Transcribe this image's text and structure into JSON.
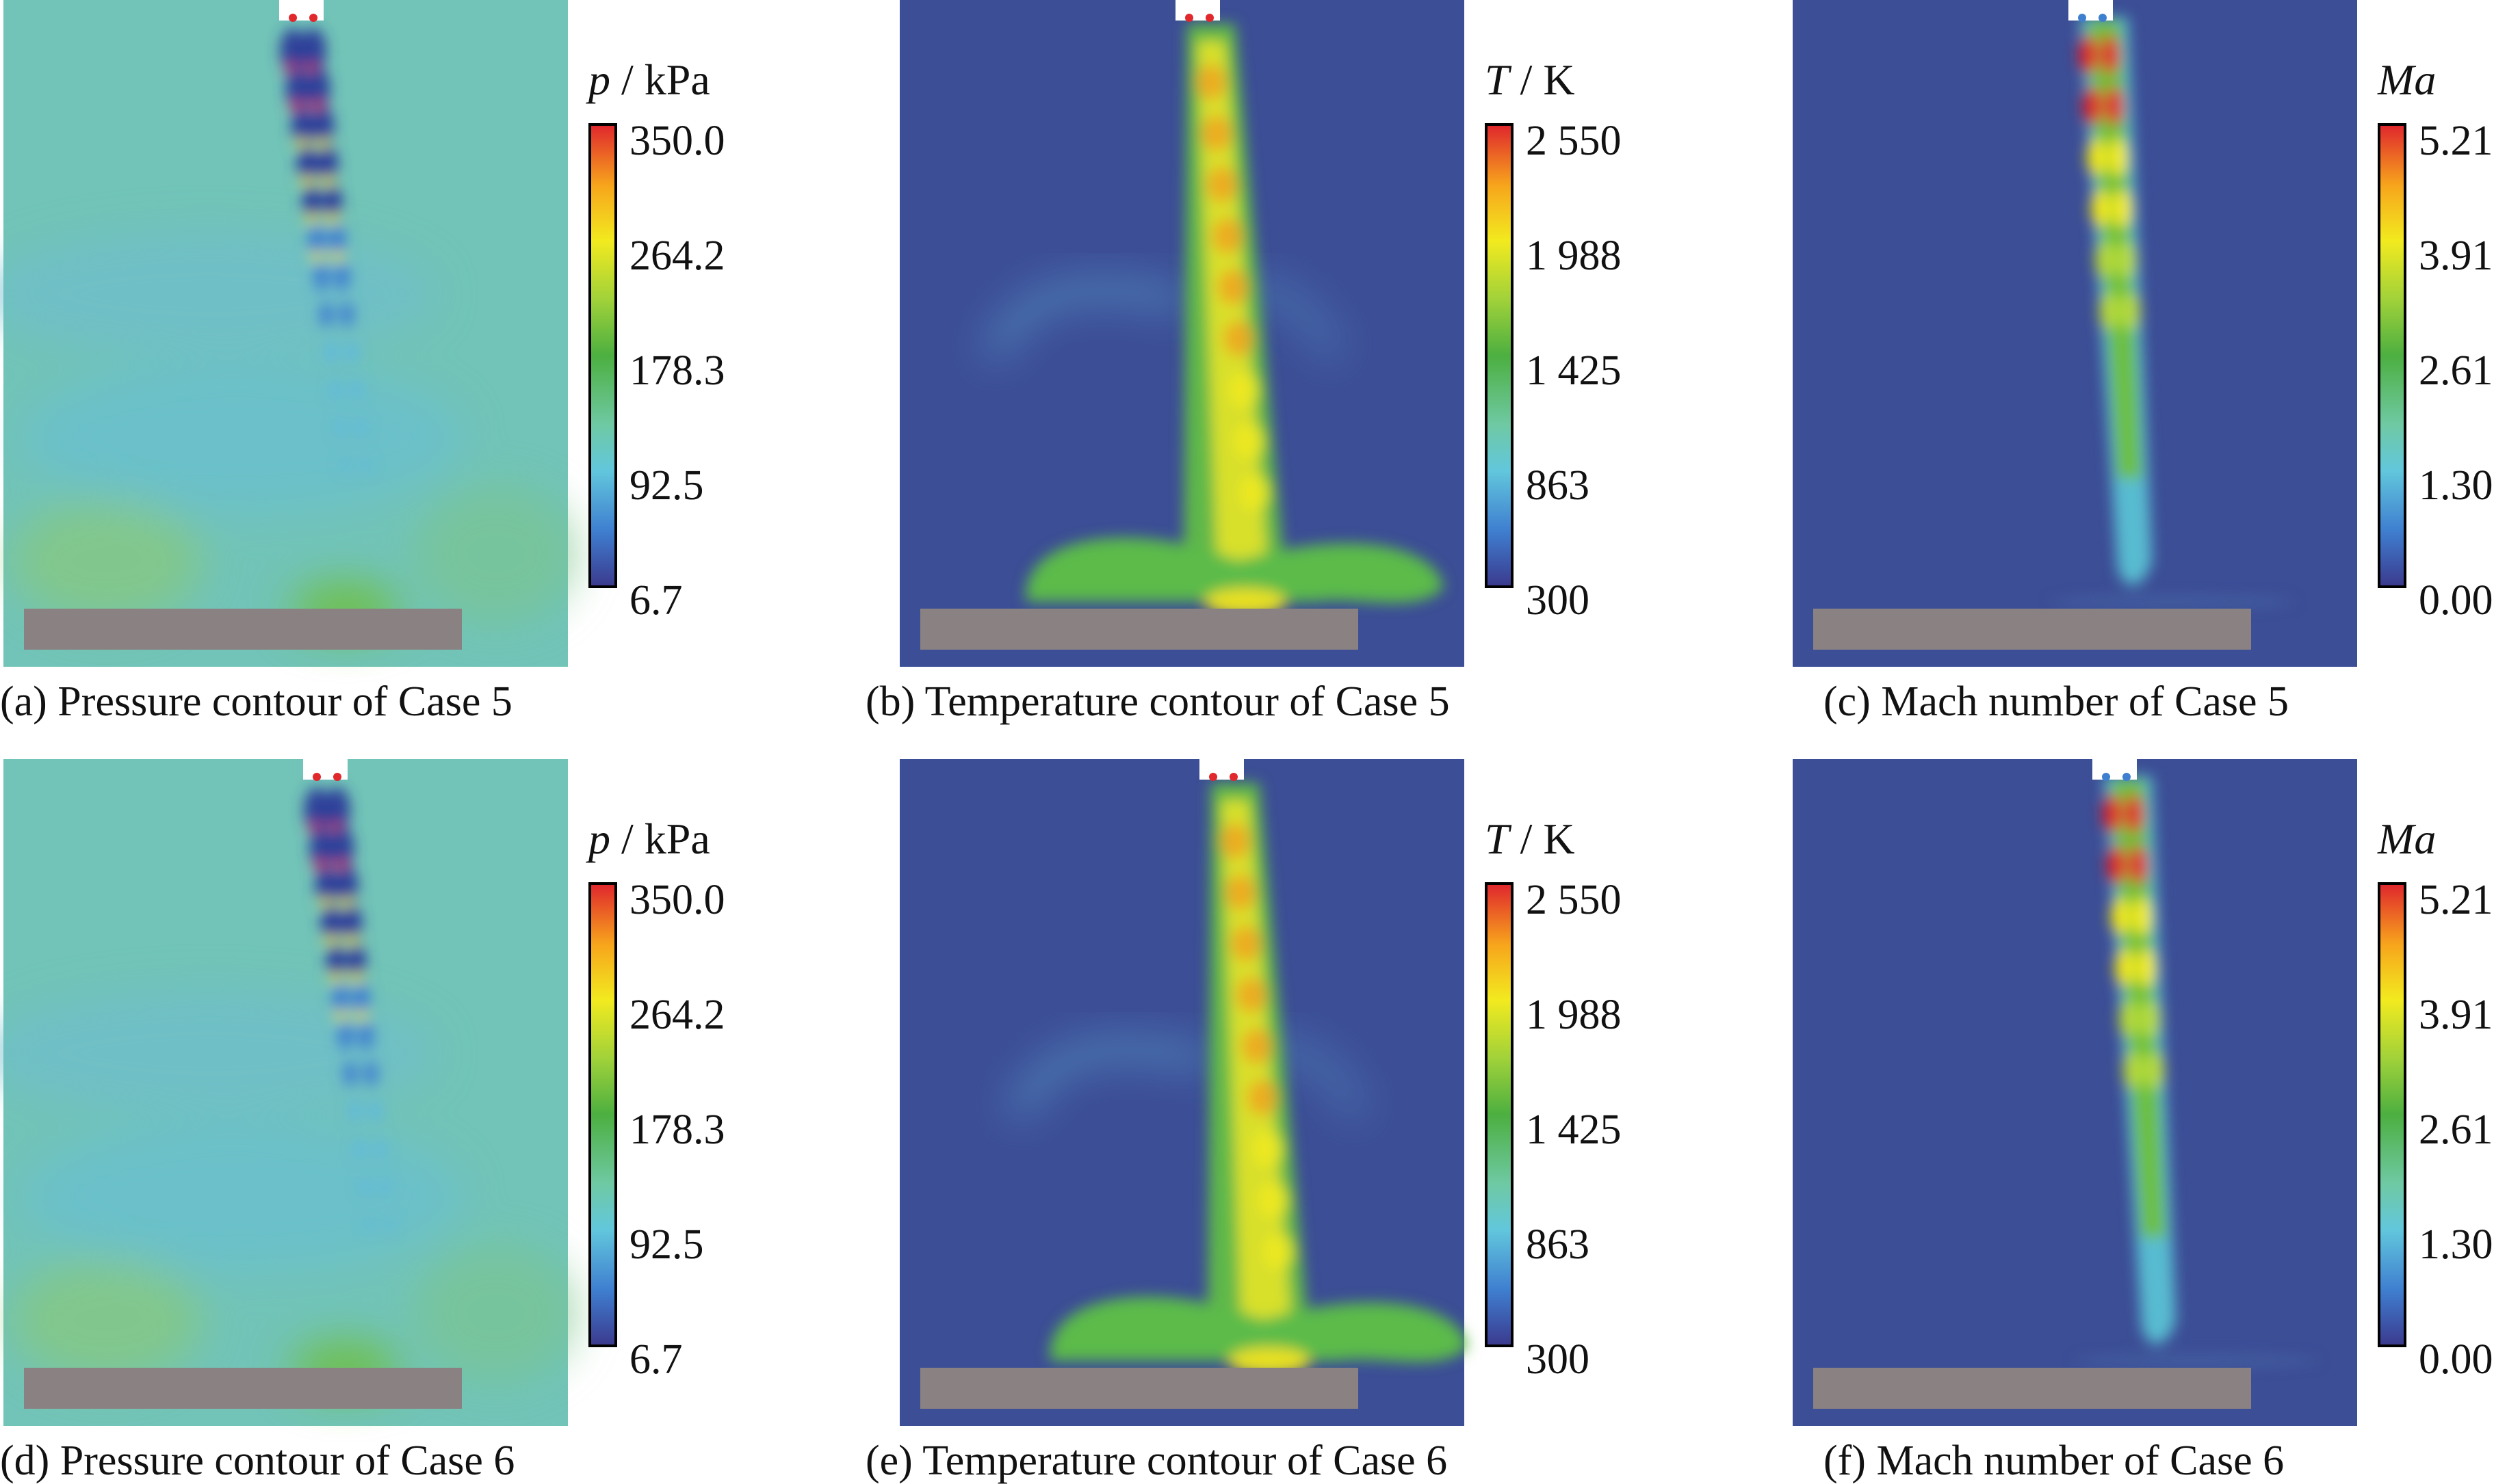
{
  "panels": [
    {
      "id": "a",
      "field": "pressure",
      "case": 5,
      "caption": "(a) Pressure contour of Case 5",
      "colorbar": {
        "symbol": "p",
        "unit": " / kPa",
        "ticks": [
          "350.0",
          "264.2",
          "178.3",
          "92.5",
          "6.7"
        ]
      },
      "background": "#72c4b8"
    },
    {
      "id": "b",
      "field": "temperature",
      "case": 5,
      "caption": "(b) Temperature contour of Case 5",
      "colorbar": {
        "symbol": "T",
        "unit": " / K",
        "ticks": [
          "2 550",
          "1 988",
          "1 425",
          "863",
          "300"
        ]
      },
      "background": "#3c4e96"
    },
    {
      "id": "c",
      "field": "mach",
      "case": 5,
      "caption": "(c) Mach number of Case 5",
      "colorbar": {
        "symbol": "Ma",
        "unit": "",
        "ticks": [
          "5.21",
          "3.91",
          "2.61",
          "1.30",
          "0.00"
        ]
      },
      "background": "#3c4e96"
    },
    {
      "id": "d",
      "field": "pressure",
      "case": 6,
      "caption": "(d) Pressure contour of Case 6",
      "colorbar": {
        "symbol": "p",
        "unit": " / kPa",
        "ticks": [
          "350.0",
          "264.2",
          "178.3",
          "92.5",
          "6.7"
        ]
      },
      "background": "#72c4b8"
    },
    {
      "id": "e",
      "field": "temperature",
      "case": 6,
      "caption": "(e) Temperature contour of Case 6",
      "colorbar": {
        "symbol": "T",
        "unit": " / K",
        "ticks": [
          "2 550",
          "1 988",
          "1 425",
          "863",
          "300"
        ]
      },
      "background": "#3c4e96"
    },
    {
      "id": "f",
      "field": "mach",
      "case": 6,
      "caption": "(f) Mach number of Case 6",
      "colorbar": {
        "symbol": "Ma",
        "unit": "",
        "ticks": [
          "5.21",
          "3.91",
          "2.61",
          "1.30",
          "0.00"
        ]
      },
      "background": "#3c4e96"
    }
  ],
  "colors": {
    "plate": "#8a8282",
    "nozzle_slot": "#ffffff",
    "colormap": [
      "#3b3b8f",
      "#3f7fd0",
      "#62c7dc",
      "#6fc9a3",
      "#4caf40",
      "#9fd13a",
      "#f2ea1f",
      "#f7a51c",
      "#e0282d"
    ]
  }
}
